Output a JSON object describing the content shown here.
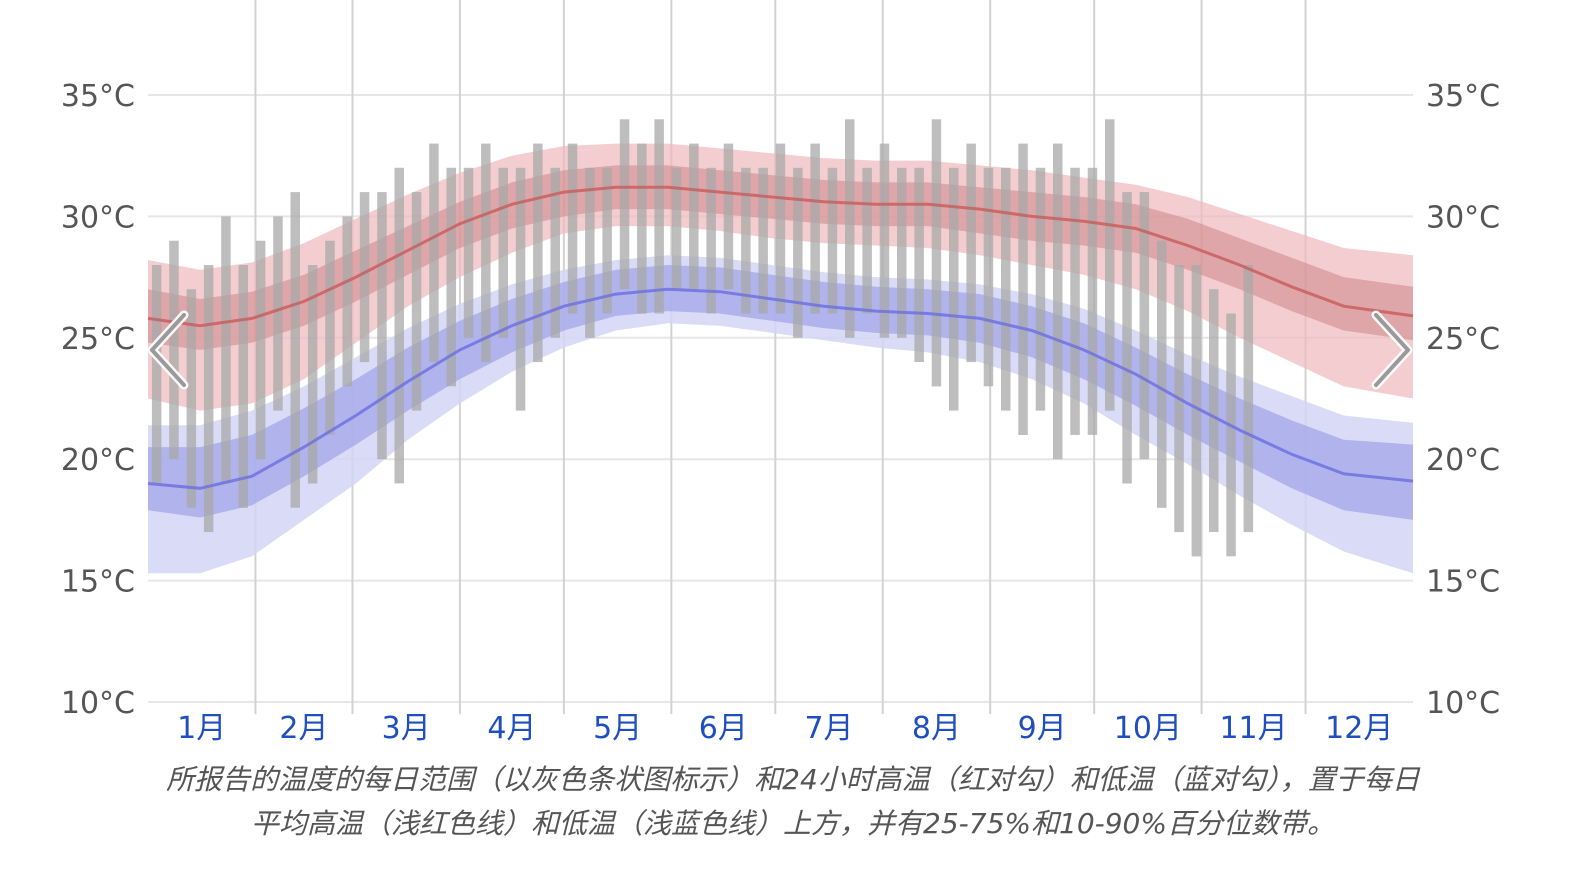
{
  "chart_data": {
    "type": "area",
    "title": "",
    "xlabel": "",
    "ylabel": "",
    "ylim": [
      10,
      35
    ],
    "y_ticks": [
      "35°C",
      "30°C",
      "25°C",
      "20°C",
      "15°C",
      "10°C"
    ],
    "y_tick_values": [
      35,
      30,
      25,
      20,
      15,
      10
    ],
    "months": [
      "1月",
      "2月",
      "3月",
      "4月",
      "5月",
      "6月",
      "7月",
      "8月",
      "9月",
      "10月",
      "11月",
      "12月"
    ],
    "x_domain_days": [
      0,
      365
    ],
    "grid": true,
    "avg_high": {
      "x": [
        0,
        15,
        30,
        45,
        60,
        75,
        90,
        105,
        120,
        135,
        150,
        165,
        180,
        195,
        210,
        225,
        240,
        255,
        270,
        285,
        300,
        315,
        330,
        345,
        365
      ],
      "mean": [
        25.8,
        25.5,
        25.8,
        26.5,
        27.5,
        28.6,
        29.7,
        30.5,
        31.0,
        31.2,
        31.2,
        31.0,
        30.8,
        30.6,
        30.5,
        30.5,
        30.3,
        30.0,
        29.8,
        29.5,
        28.8,
        28.0,
        27.1,
        26.3,
        25.9
      ],
      "p25": [
        24.8,
        24.5,
        24.8,
        25.5,
        26.5,
        27.6,
        28.7,
        29.5,
        30.0,
        30.3,
        30.3,
        30.1,
        29.9,
        29.7,
        29.6,
        29.6,
        29.3,
        29.0,
        28.8,
        28.5,
        27.8,
        27.0,
        26.1,
        25.3,
        24.9
      ],
      "p75": [
        27.0,
        26.6,
        26.9,
        27.6,
        28.6,
        29.6,
        30.6,
        31.4,
        31.9,
        32.1,
        32.1,
        31.9,
        31.7,
        31.5,
        31.4,
        31.4,
        31.2,
        31.0,
        30.8,
        30.5,
        29.9,
        29.1,
        28.3,
        27.5,
        27.1
      ],
      "p10": [
        22.5,
        22.0,
        22.3,
        23.3,
        24.8,
        26.3,
        27.5,
        28.5,
        29.3,
        29.6,
        29.6,
        29.4,
        29.1,
        28.9,
        28.8,
        28.7,
        28.4,
        28.0,
        27.6,
        27.0,
        26.1,
        25.0,
        24.0,
        23.0,
        22.5
      ],
      "p90": [
        28.2,
        27.8,
        28.1,
        28.9,
        29.9,
        30.9,
        31.8,
        32.5,
        32.9,
        33.0,
        33.0,
        32.8,
        32.6,
        32.4,
        32.3,
        32.3,
        32.1,
        31.9,
        31.6,
        31.3,
        30.8,
        30.1,
        29.4,
        28.7,
        28.4
      ]
    },
    "avg_low": {
      "x": [
        0,
        15,
        30,
        45,
        60,
        75,
        90,
        105,
        120,
        135,
        150,
        165,
        180,
        195,
        210,
        225,
        240,
        255,
        270,
        285,
        300,
        315,
        330,
        345,
        365
      ],
      "mean": [
        19.0,
        18.8,
        19.3,
        20.5,
        21.8,
        23.2,
        24.5,
        25.5,
        26.3,
        26.8,
        27.0,
        26.9,
        26.6,
        26.3,
        26.1,
        26.0,
        25.8,
        25.3,
        24.5,
        23.5,
        22.3,
        21.2,
        20.2,
        19.4,
        19.1
      ],
      "p25": [
        17.9,
        17.6,
        18.1,
        19.3,
        20.6,
        22.0,
        23.3,
        24.4,
        25.3,
        25.9,
        26.1,
        26.0,
        25.7,
        25.4,
        25.2,
        25.1,
        24.8,
        24.2,
        23.3,
        22.2,
        21.0,
        19.9,
        18.8,
        17.9,
        17.5
      ],
      "p75": [
        20.5,
        20.5,
        21.0,
        22.1,
        23.3,
        24.6,
        25.7,
        26.6,
        27.3,
        27.8,
        28.0,
        27.9,
        27.6,
        27.3,
        27.1,
        27.0,
        26.8,
        26.3,
        25.6,
        24.6,
        23.5,
        22.5,
        21.6,
        20.8,
        20.6
      ],
      "p10": [
        15.3,
        15.3,
        16.0,
        17.5,
        19.0,
        20.8,
        22.3,
        23.6,
        24.6,
        25.3,
        25.6,
        25.5,
        25.2,
        24.9,
        24.6,
        24.4,
        24.0,
        23.3,
        22.3,
        21.0,
        19.8,
        18.5,
        17.3,
        16.2,
        15.3
      ],
      "p90": [
        21.4,
        21.4,
        22.0,
        23.0,
        24.2,
        25.4,
        26.4,
        27.2,
        27.8,
        28.2,
        28.4,
        28.3,
        28.0,
        27.7,
        27.5,
        27.4,
        27.2,
        26.8,
        26.2,
        25.3,
        24.3,
        23.4,
        22.6,
        21.8,
        21.5
      ]
    },
    "daily_range_sample": {
      "step_days": 5,
      "lows": [
        19,
        20,
        18,
        17,
        19,
        18,
        20,
        22,
        18,
        19,
        21,
        23,
        24,
        20,
        19,
        22,
        24,
        23,
        25,
        24,
        25,
        22,
        24,
        25,
        26,
        25,
        26,
        27,
        26,
        26,
        27,
        27,
        26,
        27,
        26,
        26,
        26,
        25,
        26,
        26,
        25,
        26,
        25,
        25,
        24,
        23,
        22,
        24,
        23,
        22,
        21,
        22,
        20,
        21,
        21,
        22,
        19,
        20,
        18,
        17,
        16,
        17,
        16,
        17
      ],
      "highs": [
        28,
        29,
        27,
        28,
        30,
        28,
        29,
        30,
        31,
        28,
        29,
        30,
        31,
        31,
        32,
        31,
        33,
        32,
        32,
        33,
        32,
        32,
        33,
        32,
        33,
        32,
        32,
        34,
        33,
        34,
        32,
        33,
        32,
        33,
        32,
        32,
        33,
        32,
        33,
        32,
        34,
        32,
        33,
        32,
        32,
        34,
        32,
        33,
        32,
        32,
        33,
        32,
        33,
        32,
        32,
        34,
        31,
        31,
        29,
        28,
        28,
        27,
        26,
        28
      ]
    },
    "colors": {
      "high_line": "#c85a5a",
      "high_band_inner": "#c47878",
      "high_band_outer": "#f0b8bc",
      "low_line": "#6a6ee0",
      "low_band_inner": "#a3a6e8",
      "low_band_outer": "#d4d5f5",
      "daily_bar": "#a8a8a8",
      "month_label": "#1f4fbf"
    }
  },
  "caption": {
    "line1": "所报告的温度的每日范围（以灰色条状图标示）和24小时高温（红对勾）和低温（蓝对勾），置于每日",
    "line2": "平均高温（浅红色线）和低温（浅蓝色线）上方，并有25-75%和10-90%百分位数带。"
  },
  "nav": {
    "prev_icon": "chevron-left-icon",
    "next_icon": "chevron-right-icon"
  }
}
